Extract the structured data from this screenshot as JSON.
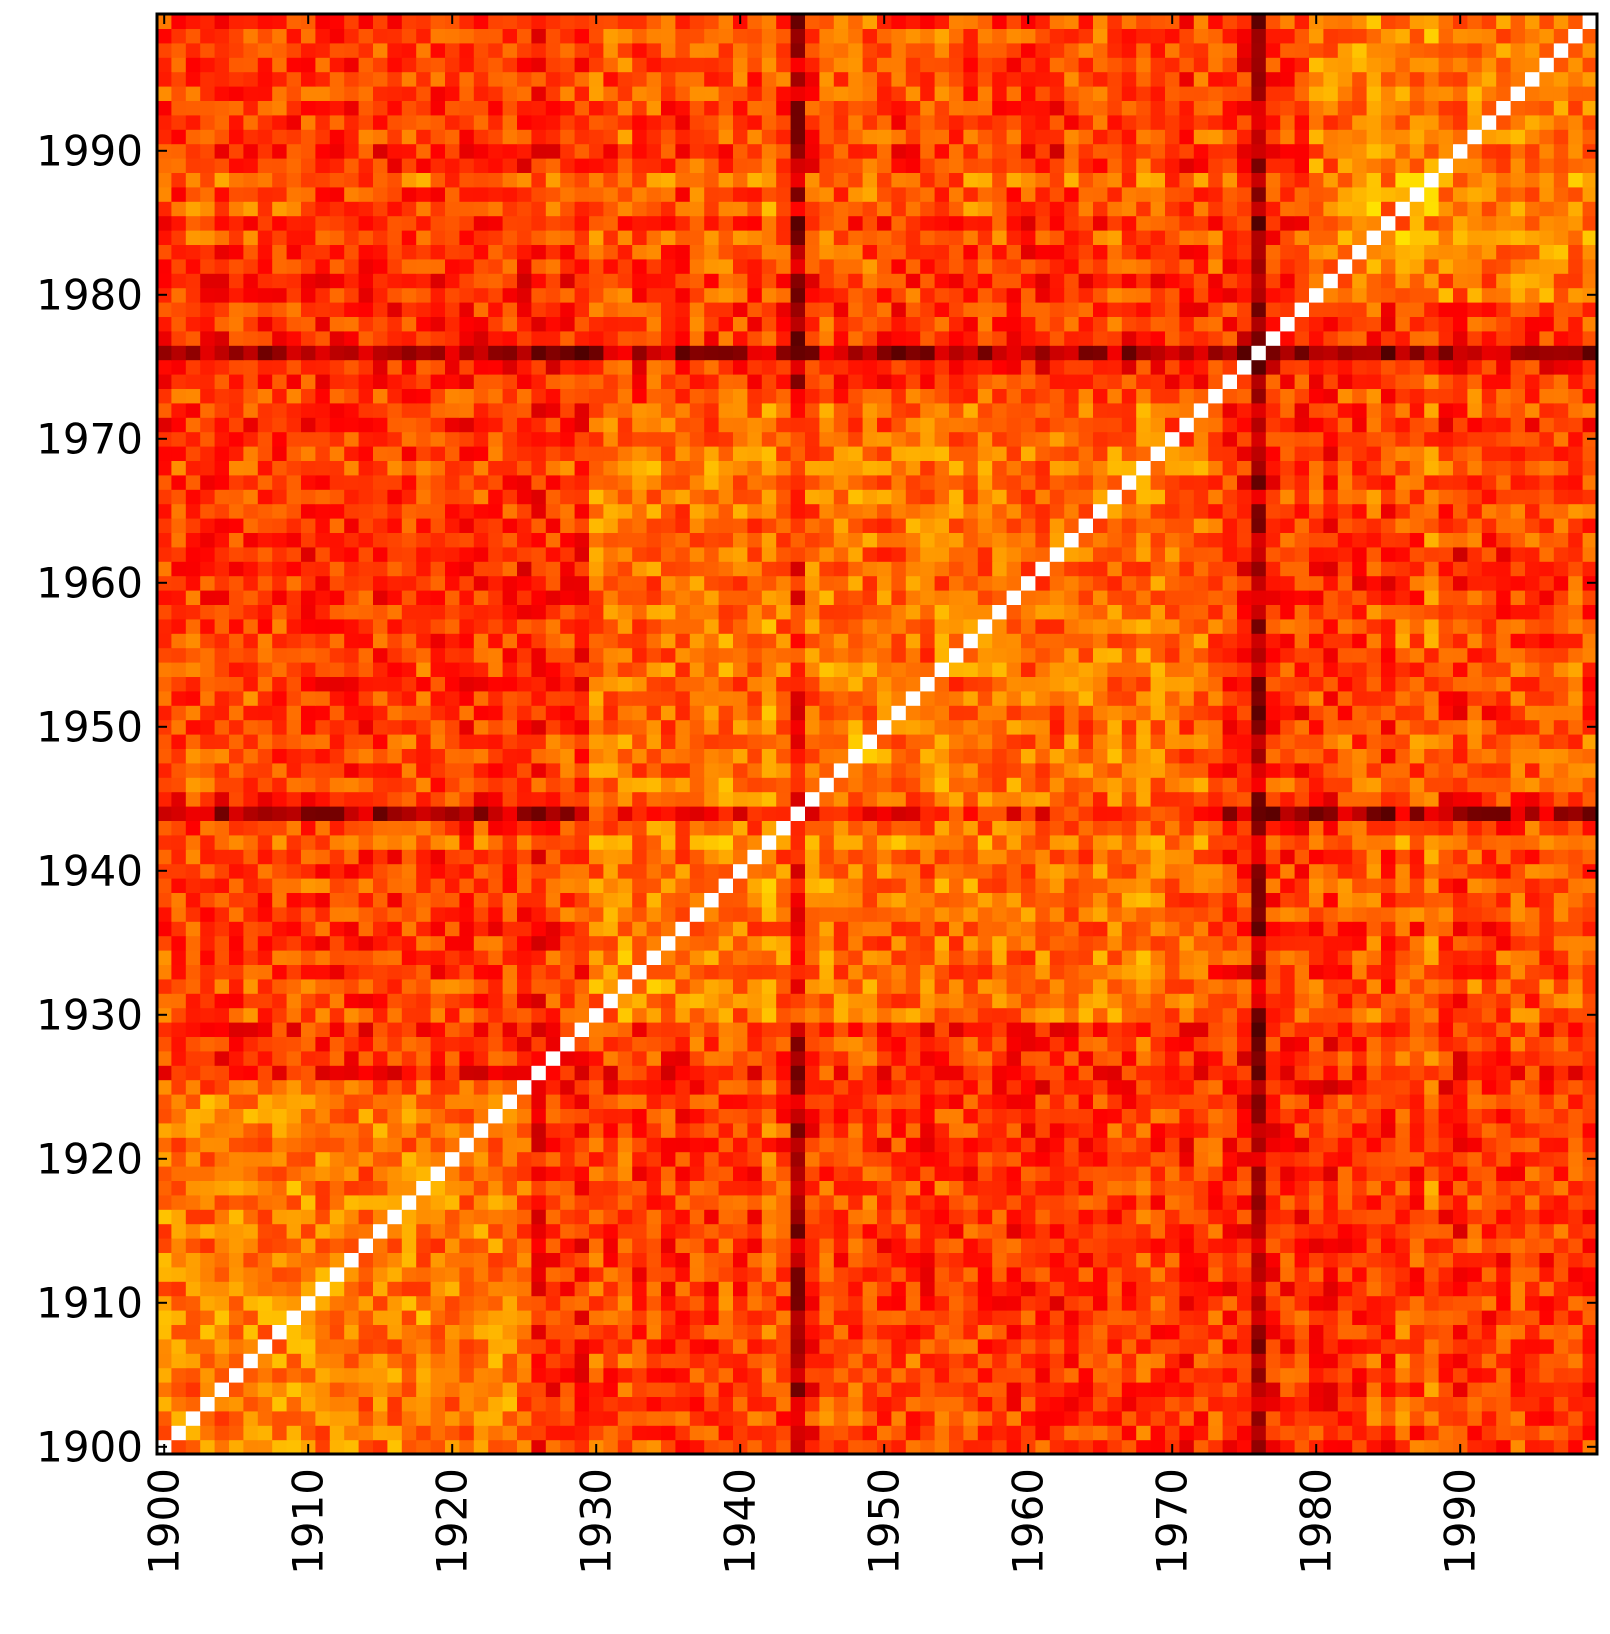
{
  "chart_data": {
    "type": "heatmap",
    "title": "",
    "xlabel": "",
    "ylabel": "",
    "x_start": 1900,
    "y_start": 1900,
    "cells_per_axis": 100,
    "xlim": [
      1900,
      1999
    ],
    "ylim": [
      1900,
      1999
    ],
    "x_ticks": [
      1900,
      1910,
      1920,
      1930,
      1940,
      1950,
      1960,
      1970,
      1980,
      1990
    ],
    "y_ticks": [
      1900,
      1910,
      1920,
      1930,
      1940,
      1950,
      1960,
      1970,
      1980,
      1990
    ],
    "x_tick_labels": [
      "1900",
      "1910",
      "1920",
      "1930",
      "1940",
      "1950",
      "1960",
      "1970",
      "1980",
      "1990"
    ],
    "y_tick_labels": [
      "1900",
      "1910",
      "1920",
      "1930",
      "1940",
      "1950",
      "1960",
      "1970",
      "1980",
      "1990"
    ],
    "colormap": "hot",
    "colormap_stops": [
      "#000000",
      "#ff0000",
      "#ffff00",
      "#ffffff"
    ],
    "value_range": [
      0,
      1
    ],
    "symmetric": true,
    "diagonal_value": 1.0,
    "grid": false,
    "legend": "none",
    "row_means": [
      0.45,
      0.44,
      0.46,
      0.44,
      0.43,
      0.45,
      0.46,
      0.45,
      0.44,
      0.46,
      0.45,
      0.44,
      0.43,
      0.42,
      0.42,
      0.42,
      0.43,
      0.44,
      0.46,
      0.42,
      0.45,
      0.42,
      0.44,
      0.44,
      0.43,
      0.38,
      0.35,
      0.42,
      0.44,
      0.4,
      0.52,
      0.48,
      0.56,
      0.46,
      0.52,
      0.46,
      0.44,
      0.5,
      0.48,
      0.52,
      0.48,
      0.46,
      0.58,
      0.45,
      0.14,
      0.42,
      0.55,
      0.48,
      0.52,
      0.54,
      0.45,
      0.46,
      0.5,
      0.44,
      0.52,
      0.46,
      0.48,
      0.48,
      0.46,
      0.44,
      0.42,
      0.44,
      0.4,
      0.46,
      0.45,
      0.48,
      0.5,
      0.46,
      0.52,
      0.48,
      0.44,
      0.4,
      0.46,
      0.48,
      0.43,
      0.38,
      0.12,
      0.4,
      0.44,
      0.42,
      0.44,
      0.38,
      0.48,
      0.44,
      0.52,
      0.4,
      0.56,
      0.48,
      0.6,
      0.44,
      0.4,
      0.5,
      0.44,
      0.46,
      0.48,
      0.48,
      0.46,
      0.5,
      0.5,
      0.48
    ],
    "notes_blocks": [
      {
        "rows": [
          1900,
          1925
        ],
        "cols": [
          1900,
          1925
        ],
        "strength": 0.68
      },
      {
        "rows": [
          1930,
          1972
        ],
        "cols": [
          1930,
          1972
        ],
        "strength": 0.6
      },
      {
        "rows": [
          1980,
          1999
        ],
        "cols": [
          1980,
          1999
        ],
        "strength": 0.66
      }
    ]
  }
}
